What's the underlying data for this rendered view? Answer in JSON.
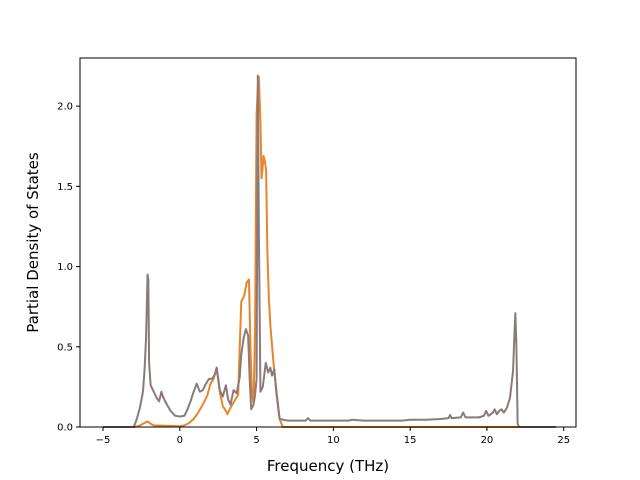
{
  "chart_data": {
    "type": "line",
    "title": "",
    "xlabel": "Frequency (THz)",
    "ylabel": "Partial Density of States",
    "xlim": [
      -6.5,
      25.8
    ],
    "ylim": [
      0,
      2.3
    ],
    "xticks": [
      -5,
      0,
      5,
      10,
      15,
      20,
      25
    ],
    "yticks": [
      0.0,
      0.5,
      1.0,
      1.5,
      2.0
    ],
    "xtick_labels": [
      "−5",
      "0",
      "5",
      "10",
      "15",
      "20",
      "25"
    ],
    "ytick_labels": [
      "0.0",
      "0.5",
      "1.0",
      "1.5",
      "2.0"
    ],
    "grid": false,
    "legend": "none",
    "series": [
      {
        "color": "#e8852a",
        "points": [
          [
            -5.0,
            0.0
          ],
          [
            -3.0,
            0.0
          ],
          [
            -2.7,
            0.005
          ],
          [
            -2.4,
            0.02
          ],
          [
            -2.1,
            0.035
          ],
          [
            -1.9,
            0.02
          ],
          [
            -1.7,
            0.01
          ],
          [
            -1.0,
            0.008
          ],
          [
            -0.5,
            0.006
          ],
          [
            0.0,
            0.005
          ],
          [
            0.3,
            0.01
          ],
          [
            0.6,
            0.025
          ],
          [
            0.9,
            0.05
          ],
          [
            1.2,
            0.09
          ],
          [
            1.5,
            0.14
          ],
          [
            1.8,
            0.2
          ],
          [
            2.0,
            0.27
          ],
          [
            2.2,
            0.3
          ],
          [
            2.4,
            0.37
          ],
          [
            2.6,
            0.22
          ],
          [
            2.8,
            0.13
          ],
          [
            3.0,
            0.1
          ],
          [
            3.1,
            0.08
          ],
          [
            3.3,
            0.12
          ],
          [
            3.6,
            0.17
          ],
          [
            3.8,
            0.2
          ],
          [
            4.0,
            0.78
          ],
          [
            4.2,
            0.82
          ],
          [
            4.35,
            0.9
          ],
          [
            4.5,
            0.92
          ],
          [
            4.6,
            0.5
          ],
          [
            4.7,
            0.2
          ],
          [
            4.8,
            0.15
          ],
          [
            4.9,
            0.6
          ],
          [
            5.0,
            1.95
          ],
          [
            5.1,
            2.15
          ],
          [
            5.15,
            2.18
          ],
          [
            5.25,
            1.9
          ],
          [
            5.32,
            1.55
          ],
          [
            5.38,
            1.6
          ],
          [
            5.45,
            1.69
          ],
          [
            5.55,
            1.65
          ],
          [
            5.62,
            1.6
          ],
          [
            5.7,
            1.1
          ],
          [
            5.8,
            0.8
          ],
          [
            5.9,
            0.63
          ],
          [
            6.1,
            0.4
          ],
          [
            6.3,
            0.22
          ],
          [
            6.5,
            0.05
          ],
          [
            6.7,
            0.0
          ],
          [
            10.0,
            0.0
          ],
          [
            15.0,
            0.0
          ],
          [
            20.0,
            0.0
          ],
          [
            22.0,
            0.0
          ],
          [
            24.5,
            0.0
          ]
        ]
      },
      {
        "color": "#8a7a7a",
        "points": [
          [
            -5.0,
            0.0
          ],
          [
            -3.0,
            0.0
          ],
          [
            -2.8,
            0.05
          ],
          [
            -2.6,
            0.12
          ],
          [
            -2.4,
            0.22
          ],
          [
            -2.3,
            0.35
          ],
          [
            -2.2,
            0.55
          ],
          [
            -2.1,
            0.95
          ],
          [
            -2.05,
            0.92
          ],
          [
            -2.0,
            0.4
          ],
          [
            -1.9,
            0.26
          ],
          [
            -1.7,
            0.22
          ],
          [
            -1.5,
            0.18
          ],
          [
            -1.35,
            0.16
          ],
          [
            -1.2,
            0.22
          ],
          [
            -1.1,
            0.19
          ],
          [
            -0.9,
            0.15
          ],
          [
            -0.6,
            0.1
          ],
          [
            -0.3,
            0.07
          ],
          [
            0.0,
            0.065
          ],
          [
            0.3,
            0.07
          ],
          [
            0.5,
            0.11
          ],
          [
            0.7,
            0.16
          ],
          [
            0.9,
            0.22
          ],
          [
            1.1,
            0.27
          ],
          [
            1.3,
            0.22
          ],
          [
            1.5,
            0.23
          ],
          [
            1.7,
            0.27
          ],
          [
            1.9,
            0.3
          ],
          [
            2.1,
            0.3
          ],
          [
            2.3,
            0.33
          ],
          [
            2.4,
            0.37
          ],
          [
            2.5,
            0.3
          ],
          [
            2.6,
            0.23
          ],
          [
            2.8,
            0.19
          ],
          [
            3.0,
            0.26
          ],
          [
            3.15,
            0.17
          ],
          [
            3.3,
            0.14
          ],
          [
            3.5,
            0.23
          ],
          [
            3.7,
            0.21
          ],
          [
            3.9,
            0.31
          ],
          [
            4.0,
            0.45
          ],
          [
            4.15,
            0.55
          ],
          [
            4.3,
            0.61
          ],
          [
            4.45,
            0.57
          ],
          [
            4.55,
            0.3
          ],
          [
            4.65,
            0.11
          ],
          [
            4.8,
            0.14
          ],
          [
            4.9,
            0.2
          ],
          [
            5.0,
            0.3
          ],
          [
            5.08,
            2.19
          ],
          [
            5.15,
            1.2
          ],
          [
            5.25,
            0.22
          ],
          [
            5.4,
            0.25
          ],
          [
            5.6,
            0.4
          ],
          [
            5.75,
            0.34
          ],
          [
            5.9,
            0.37
          ],
          [
            6.0,
            0.32
          ],
          [
            6.15,
            0.36
          ],
          [
            6.3,
            0.2
          ],
          [
            6.5,
            0.05
          ],
          [
            7.0,
            0.04
          ],
          [
            8.0,
            0.04
          ],
          [
            8.2,
            0.04
          ],
          [
            8.35,
            0.055
          ],
          [
            8.5,
            0.04
          ],
          [
            10.0,
            0.04
          ],
          [
            11.0,
            0.04
          ],
          [
            11.2,
            0.045
          ],
          [
            12.0,
            0.04
          ],
          [
            14.5,
            0.04
          ],
          [
            15.0,
            0.045
          ],
          [
            16.0,
            0.045
          ],
          [
            17.0,
            0.05
          ],
          [
            17.5,
            0.055
          ],
          [
            17.6,
            0.075
          ],
          [
            17.7,
            0.055
          ],
          [
            18.3,
            0.06
          ],
          [
            18.45,
            0.09
          ],
          [
            18.6,
            0.06
          ],
          [
            19.0,
            0.06
          ],
          [
            19.5,
            0.06
          ],
          [
            19.8,
            0.07
          ],
          [
            19.95,
            0.1
          ],
          [
            20.1,
            0.07
          ],
          [
            20.4,
            0.09
          ],
          [
            20.5,
            0.11
          ],
          [
            20.65,
            0.08
          ],
          [
            20.8,
            0.1
          ],
          [
            20.95,
            0.11
          ],
          [
            21.1,
            0.09
          ],
          [
            21.3,
            0.12
          ],
          [
            21.5,
            0.18
          ],
          [
            21.7,
            0.35
          ],
          [
            21.8,
            0.6
          ],
          [
            21.85,
            0.71
          ],
          [
            21.92,
            0.5
          ],
          [
            22.0,
            0.02
          ],
          [
            22.1,
            0.0
          ],
          [
            24.5,
            0.0
          ]
        ]
      }
    ]
  }
}
